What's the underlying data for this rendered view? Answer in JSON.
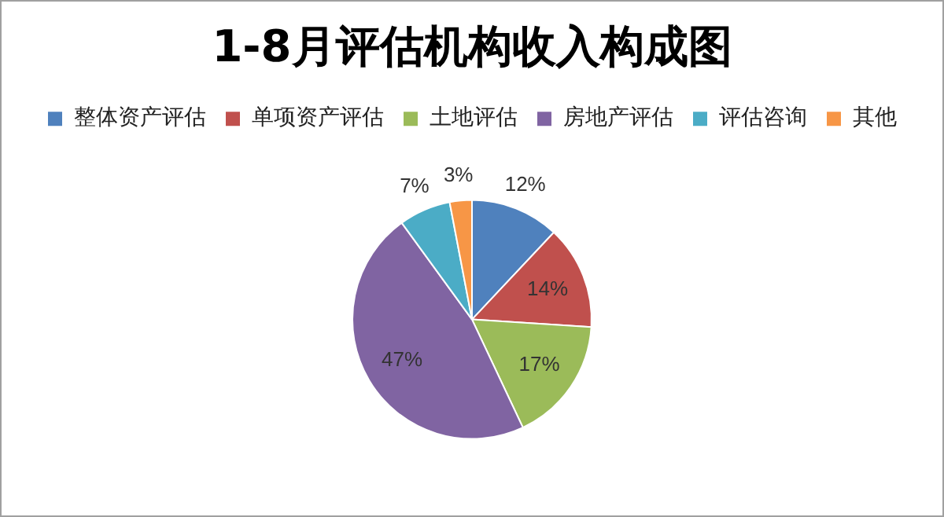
{
  "chart_data": {
    "type": "pie",
    "title": "1-8月评估机构收入构成图",
    "categories": [
      "整体资产评估",
      "单项资产评估",
      "土地评估",
      "房地产评估",
      "评估咨询",
      "其他"
    ],
    "values": [
      12,
      14,
      17,
      47,
      7,
      3
    ],
    "colors": [
      "#4f81bd",
      "#c0504d",
      "#9bbb59",
      "#8064a2",
      "#4bacc6",
      "#f79646"
    ],
    "value_labels": [
      "12%",
      "14%",
      "17%",
      "47%",
      "7%",
      "3%"
    ],
    "legend": "top"
  }
}
